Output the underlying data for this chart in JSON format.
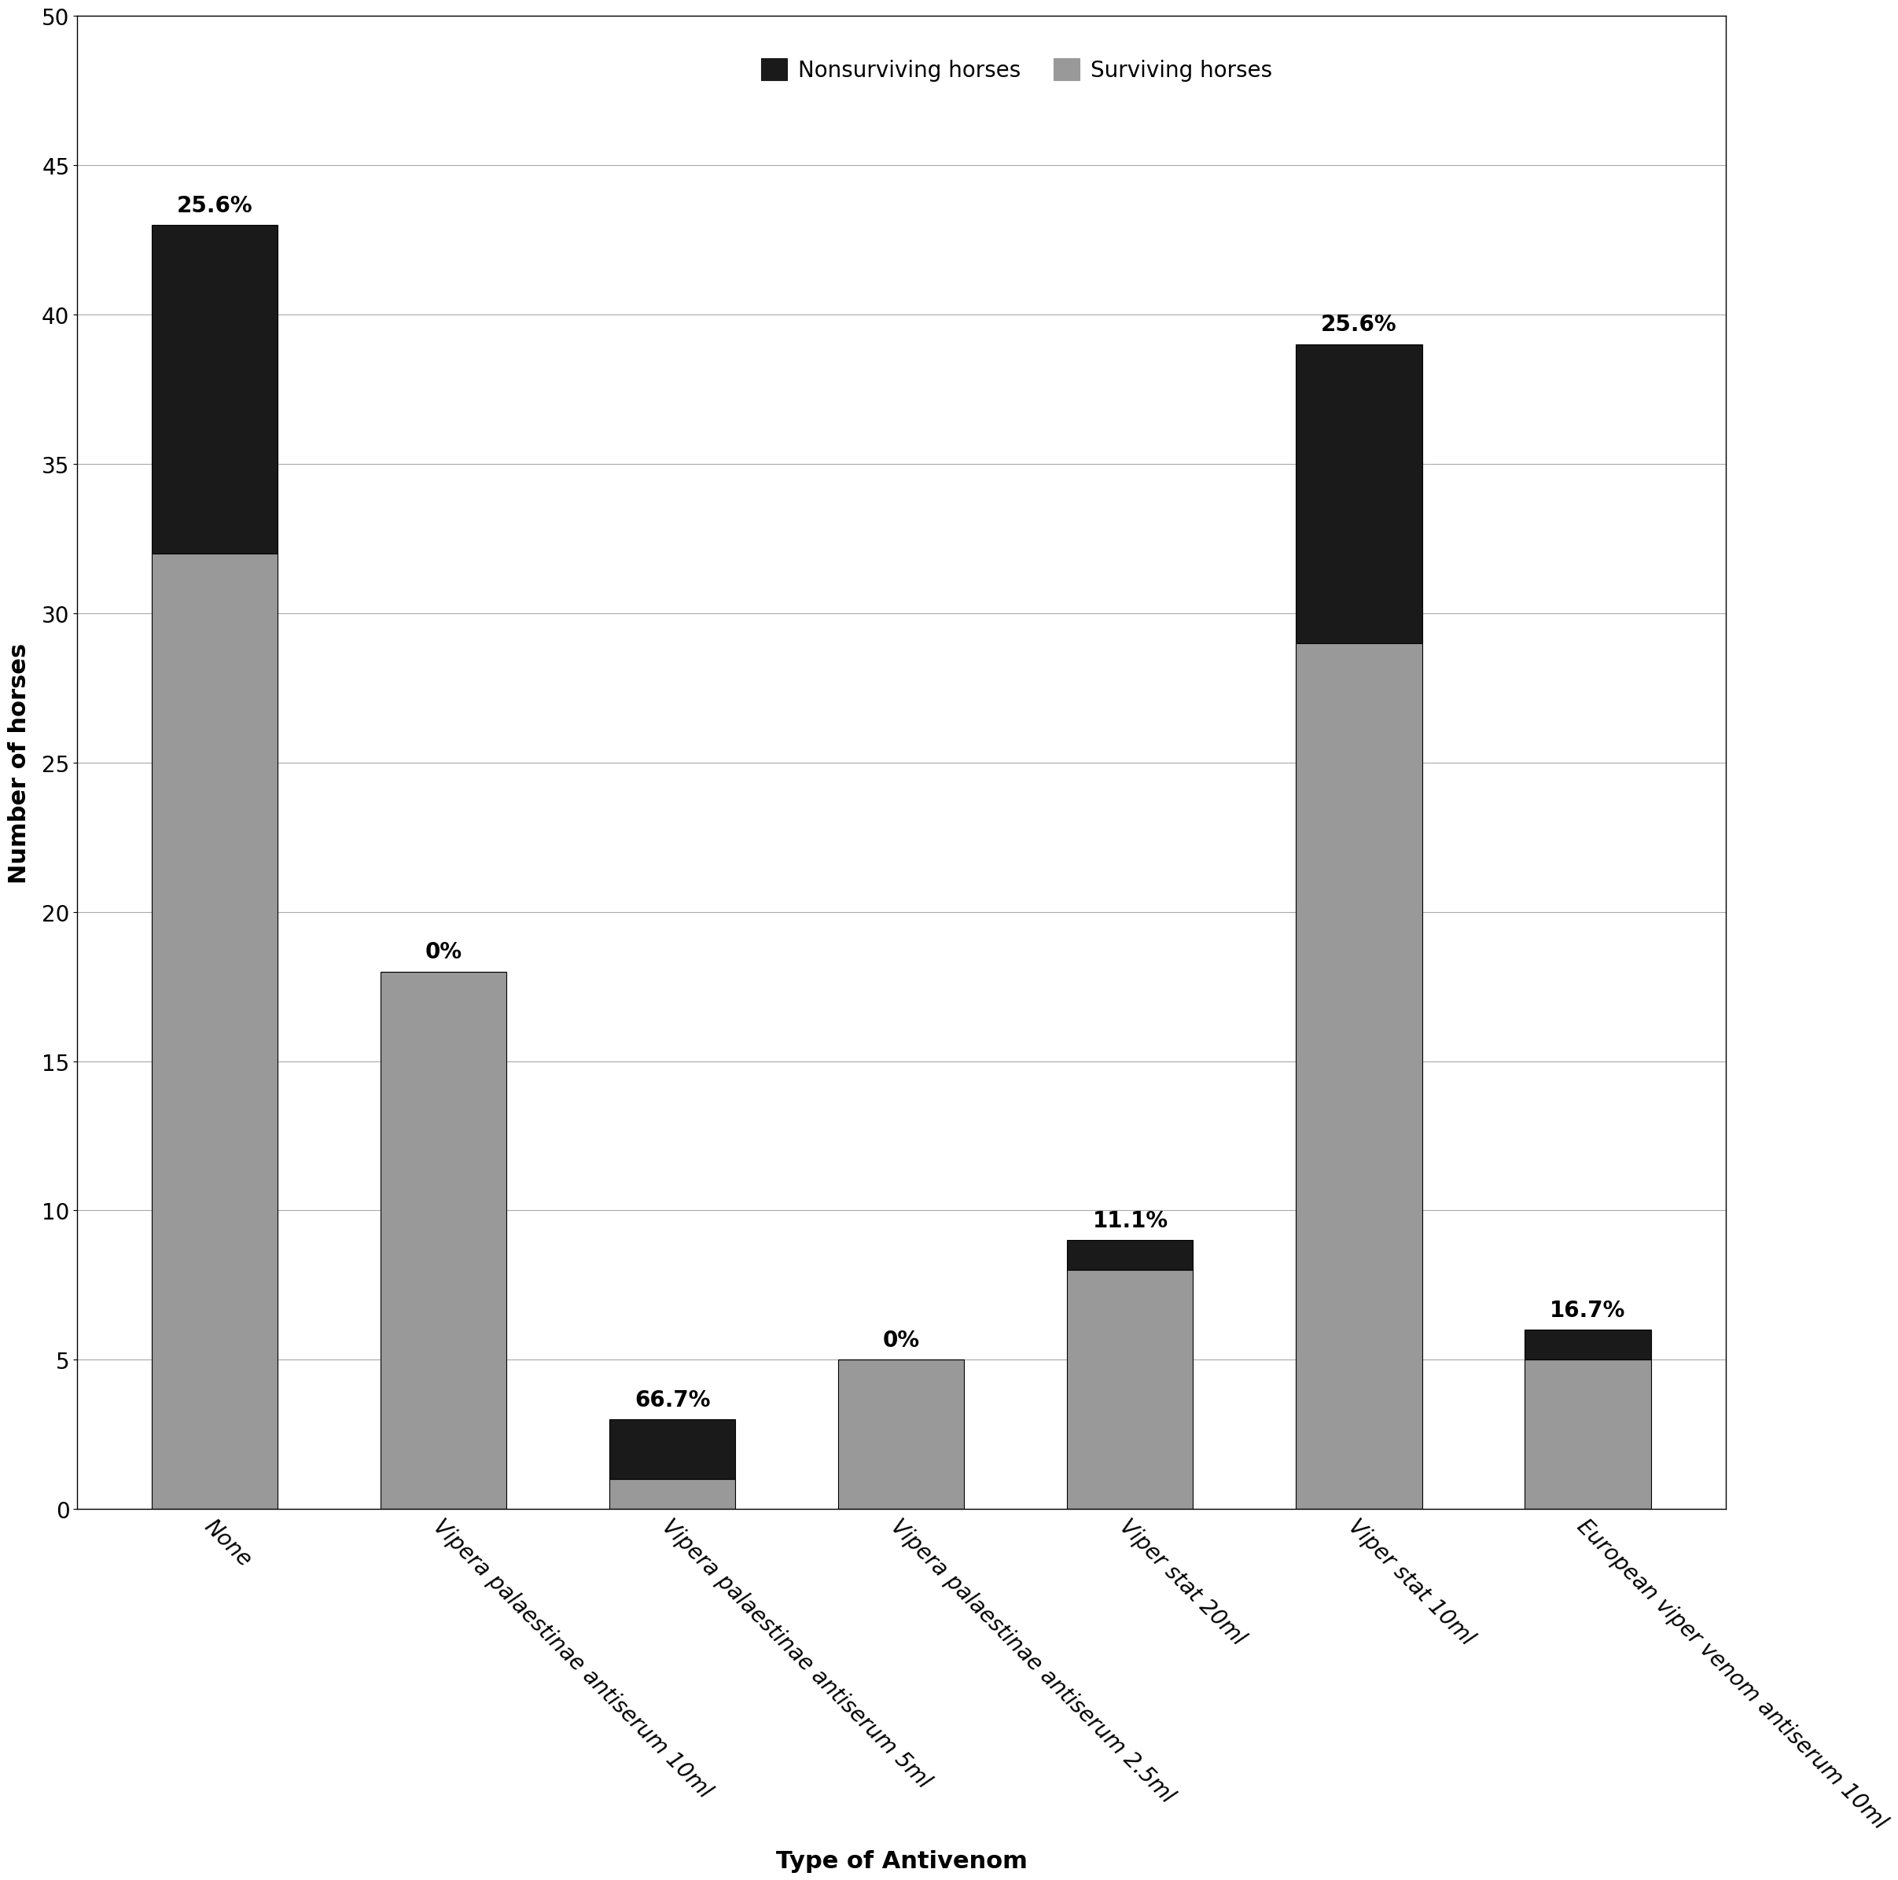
{
  "categories": [
    "None",
    "Vipera palaestinae antiserum 10ml",
    "Vipera palaestinae antiserum 5ml",
    "Vipera palaestinae antiserum 2.5ml",
    "Viper stat 20ml",
    "Viper stat 10ml",
    "European viper venom antiserum 10ml"
  ],
  "surviving": [
    32,
    18,
    1,
    5,
    8,
    29,
    5
  ],
  "nonsurviving": [
    11,
    0,
    2,
    0,
    1,
    10,
    1
  ],
  "percentages": [
    "25.6%",
    "0%",
    "66.7%",
    "0%",
    "11.1%",
    "25.6%",
    "16.7%"
  ],
  "surviving_color": "#999999",
  "nonsurviving_color": "#1a1a1a",
  "ylabel": "Number of horses",
  "xlabel": "Type of Antivenom",
  "ylim": [
    0,
    50
  ],
  "yticks": [
    0,
    5,
    10,
    15,
    20,
    25,
    30,
    35,
    40,
    45,
    50
  ],
  "legend_nonsurviving": "Nonsurviving horses",
  "legend_surviving": "Surviving horses",
  "background_color": "#ffffff",
  "grid_color": "#aaaaaa",
  "bar_edge_color": "#000000",
  "label_fontsize": 22,
  "tick_fontsize": 20,
  "legend_fontsize": 20,
  "pct_fontsize": 20
}
